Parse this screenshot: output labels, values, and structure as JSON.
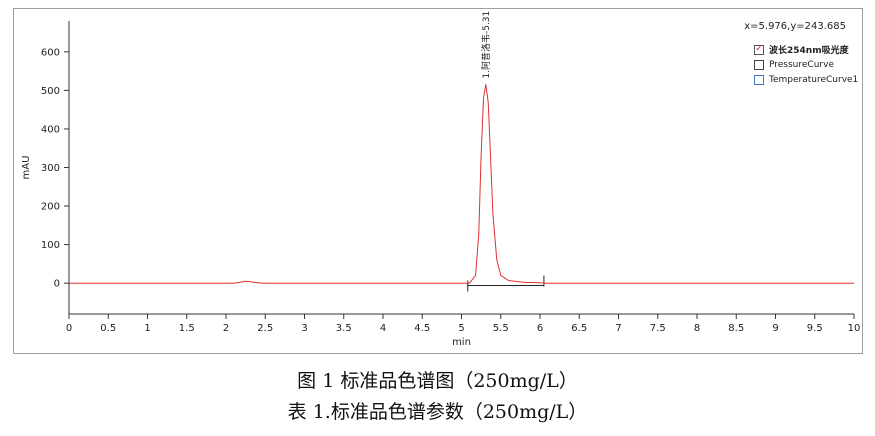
{
  "chart_data": {
    "type": "line",
    "xlabel": "min",
    "ylabel": "mAU",
    "xlim": [
      0,
      10
    ],
    "ylim": [
      -80,
      680
    ],
    "x_ticks": [
      0,
      0.5,
      1,
      1.5,
      2,
      2.5,
      3,
      3.5,
      4,
      4.5,
      5,
      5.5,
      6,
      6.5,
      7,
      7.5,
      8,
      8.5,
      9,
      9.5,
      10
    ],
    "x_tick_labels": [
      "0",
      "0.5",
      "1",
      "1.5",
      "2",
      "2.5",
      "3",
      "3.5",
      "4",
      "4.5",
      "5",
      "5.5",
      "6",
      "6.5",
      "7",
      "7.5",
      "8",
      "8.5",
      "9",
      "9.5",
      "10"
    ],
    "y_ticks": [
      0,
      100,
      200,
      300,
      400,
      500,
      600
    ],
    "y_tick_labels": [
      "0",
      "100",
      "200",
      "300",
      "400",
      "500",
      "600"
    ],
    "grid": false,
    "legend_position": "top-right",
    "series": [
      {
        "name": "波长254nm吸光度",
        "color": "#e03030",
        "x": [
          0,
          2.1,
          2.2,
          2.25,
          2.3,
          2.4,
          2.5,
          5.1,
          5.18,
          5.22,
          5.25,
          5.28,
          5.31,
          5.34,
          5.37,
          5.4,
          5.45,
          5.5,
          5.6,
          5.8,
          6.0,
          6.05,
          6.1,
          10
        ],
        "y": [
          0,
          0,
          3,
          5,
          4,
          1,
          0,
          0,
          20,
          130,
          330,
          480,
          515,
          470,
          330,
          180,
          60,
          20,
          7,
          2,
          1,
          0,
          0,
          0
        ]
      },
      {
        "name": "PressureCurve",
        "color": "#444444",
        "x": [],
        "y": []
      },
      {
        "name": "TemperatureCurve1",
        "color": "#3a78c8",
        "x": [],
        "y": []
      }
    ],
    "peak_annotation": {
      "text": "1.阿昔洛韦-5.31",
      "x": 5.31
    },
    "integration_baseline": {
      "x_start": 5.08,
      "x_end": 6.05,
      "y": -6
    }
  },
  "coordinate_readout": "x=5.976,y=243.685",
  "legend": [
    {
      "label": "波长254nm吸光度",
      "checked": true,
      "check_glyph": "✓"
    },
    {
      "label": "PressureCurve",
      "checked": false,
      "check_glyph": ""
    },
    {
      "label": "TemperatureCurve1",
      "checked": false,
      "check_glyph": ""
    }
  ],
  "captions": {
    "figure": "图 1  标准品色谱图（250mg/L）",
    "table": "表 1.标准品色谱参数（250mg/L）"
  }
}
